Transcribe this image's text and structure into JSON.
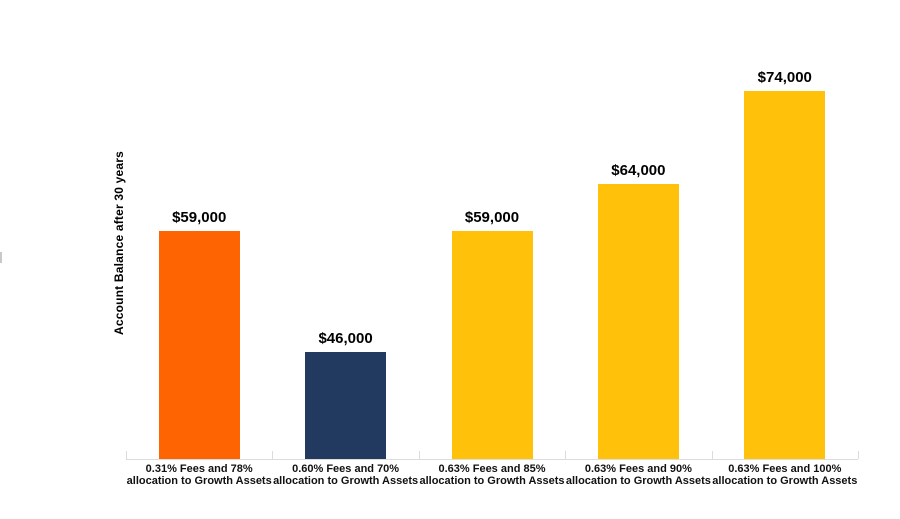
{
  "chart_data": {
    "type": "bar",
    "title": "",
    "xlabel": "",
    "ylabel": "Account Balance after 30 years",
    "categories": [
      "0.31% Fees and 78% allocation to Growth Assets",
      "0.60% Fees and 70% allocation to Growth Assets",
      "0.63% Fees and 85% allocation to Growth Assets",
      "0.63% Fees and 90% allocation to Growth Assets",
      "0.63% Fees and 100% allocation to Growth Assets"
    ],
    "category_lines": [
      [
        "0.31% Fees and 78%",
        "allocation to Growth Assets"
      ],
      [
        "0.60% Fees and 70%",
        "allocation to Growth Assets"
      ],
      [
        "0.63% Fees and 85%",
        "allocation to Growth Assets"
      ],
      [
        "0.63% Fees and 90%",
        "allocation to Growth Assets"
      ],
      [
        "0.63% Fees and 100%",
        "allocation to Growth Assets"
      ]
    ],
    "values": [
      59000,
      46000,
      59000,
      64000,
      74000
    ],
    "value_labels": [
      "$59,000",
      "$46,000",
      "$59,000",
      "$64,000",
      "$74,000"
    ],
    "bar_colors": [
      "#FE6402",
      "#233A60",
      "#FFC10A",
      "#FFC10A",
      "#FFC10A"
    ],
    "ylim": [
      34500,
      83750
    ],
    "grid": false,
    "legend": false,
    "axis_line_color": "#DCDCDC",
    "text_color": "#000000"
  }
}
